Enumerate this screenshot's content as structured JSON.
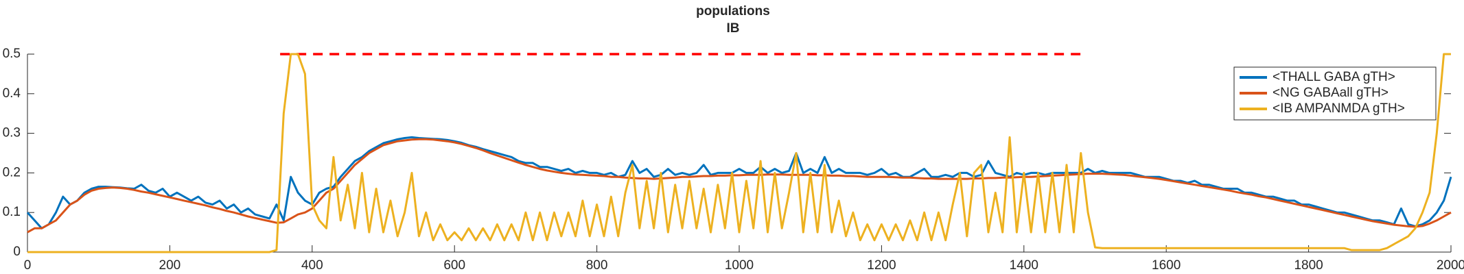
{
  "chart_data": {
    "type": "line",
    "title": "populations",
    "subtitle": "IB",
    "xlim": [
      0,
      2000
    ],
    "xticks": [
      0,
      200,
      400,
      600,
      800,
      1000,
      1200,
      1400,
      1600,
      1800,
      2000
    ],
    "ylim": [
      0,
      0.5
    ],
    "yticks": [
      0,
      0.1,
      0.2,
      0.3,
      0.4,
      0.5
    ],
    "legend": "upper right",
    "reference_line": {
      "value": 0.5,
      "xlim": [
        355,
        1485
      ],
      "color": "#ff0000"
    },
    "x": [
      0,
      10,
      20,
      30,
      40,
      50,
      60,
      70,
      80,
      90,
      100,
      110,
      120,
      130,
      140,
      150,
      160,
      170,
      180,
      190,
      200,
      210,
      220,
      230,
      240,
      250,
      260,
      270,
      280,
      290,
      300,
      310,
      320,
      330,
      340,
      350,
      360,
      370,
      380,
      390,
      400,
      410,
      420,
      430,
      440,
      450,
      460,
      470,
      480,
      490,
      500,
      510,
      520,
      530,
      540,
      550,
      560,
      570,
      580,
      590,
      600,
      610,
      620,
      630,
      640,
      650,
      660,
      670,
      680,
      690,
      700,
      710,
      720,
      730,
      740,
      750,
      760,
      770,
      780,
      790,
      800,
      810,
      820,
      830,
      840,
      850,
      860,
      870,
      880,
      890,
      900,
      910,
      920,
      930,
      940,
      950,
      960,
      970,
      980,
      990,
      1000,
      1010,
      1020,
      1030,
      1040,
      1050,
      1060,
      1070,
      1080,
      1090,
      1100,
      1110,
      1120,
      1130,
      1140,
      1150,
      1160,
      1170,
      1180,
      1190,
      1200,
      1210,
      1220,
      1230,
      1240,
      1250,
      1260,
      1270,
      1280,
      1290,
      1300,
      1310,
      1320,
      1330,
      1340,
      1350,
      1360,
      1370,
      1380,
      1390,
      1400,
      1410,
      1420,
      1430,
      1440,
      1450,
      1460,
      1470,
      1480,
      1490,
      1500,
      1510,
      1520,
      1530,
      1540,
      1550,
      1560,
      1570,
      1580,
      1590,
      1600,
      1610,
      1620,
      1630,
      1640,
      1650,
      1660,
      1670,
      1680,
      1690,
      1700,
      1710,
      1720,
      1730,
      1740,
      1750,
      1760,
      1770,
      1780,
      1790,
      1800,
      1810,
      1820,
      1830,
      1840,
      1850,
      1860,
      1870,
      1880,
      1890,
      1900,
      1910,
      1920,
      1930,
      1940,
      1950,
      1960,
      1970,
      1980,
      1990,
      2000
    ],
    "series": [
      {
        "name": "<THALL GABA gTH>",
        "color": "#0072bd",
        "values": [
          0.1,
          0.08,
          0.06,
          0.07,
          0.1,
          0.14,
          0.12,
          0.13,
          0.15,
          0.16,
          0.165,
          0.165,
          0.164,
          0.163,
          0.161,
          0.16,
          0.17,
          0.155,
          0.15,
          0.16,
          0.14,
          0.15,
          0.14,
          0.13,
          0.14,
          0.125,
          0.12,
          0.13,
          0.11,
          0.12,
          0.1,
          0.11,
          0.095,
          0.09,
          0.085,
          0.12,
          0.08,
          0.19,
          0.15,
          0.13,
          0.12,
          0.15,
          0.16,
          0.165,
          0.19,
          0.21,
          0.23,
          0.24,
          0.255,
          0.265,
          0.275,
          0.28,
          0.285,
          0.288,
          0.29,
          0.288,
          0.287,
          0.286,
          0.285,
          0.283,
          0.28,
          0.276,
          0.27,
          0.266,
          0.26,
          0.255,
          0.25,
          0.245,
          0.24,
          0.23,
          0.225,
          0.225,
          0.215,
          0.215,
          0.21,
          0.205,
          0.21,
          0.2,
          0.205,
          0.2,
          0.2,
          0.195,
          0.2,
          0.19,
          0.195,
          0.23,
          0.2,
          0.21,
          0.19,
          0.195,
          0.21,
          0.195,
          0.2,
          0.195,
          0.2,
          0.22,
          0.195,
          0.2,
          0.2,
          0.2,
          0.21,
          0.2,
          0.2,
          0.215,
          0.2,
          0.21,
          0.2,
          0.205,
          0.25,
          0.2,
          0.21,
          0.2,
          0.24,
          0.2,
          0.21,
          0.2,
          0.2,
          0.2,
          0.195,
          0.2,
          0.21,
          0.195,
          0.2,
          0.19,
          0.19,
          0.2,
          0.21,
          0.19,
          0.19,
          0.195,
          0.19,
          0.2,
          0.2,
          0.19,
          0.195,
          0.23,
          0.2,
          0.195,
          0.19,
          0.2,
          0.195,
          0.2,
          0.2,
          0.195,
          0.2,
          0.2,
          0.2,
          0.2,
          0.2,
          0.21,
          0.2,
          0.205,
          0.2,
          0.2,
          0.2,
          0.2,
          0.195,
          0.19,
          0.19,
          0.19,
          0.185,
          0.18,
          0.18,
          0.175,
          0.18,
          0.17,
          0.17,
          0.165,
          0.16,
          0.16,
          0.16,
          0.15,
          0.15,
          0.145,
          0.14,
          0.14,
          0.135,
          0.13,
          0.13,
          0.12,
          0.12,
          0.115,
          0.11,
          0.105,
          0.1,
          0.1,
          0.095,
          0.09,
          0.085,
          0.08,
          0.08,
          0.075,
          0.07,
          0.11,
          0.07,
          0.065,
          0.07,
          0.08,
          0.1,
          0.13,
          0.19
        ]
      },
      {
        "name": "<NG GABAall gTH>",
        "color": "#d95319",
        "values": [
          0.05,
          0.06,
          0.06,
          0.07,
          0.08,
          0.1,
          0.12,
          0.13,
          0.145,
          0.155,
          0.16,
          0.162,
          0.163,
          0.162,
          0.16,
          0.157,
          0.153,
          0.15,
          0.146,
          0.142,
          0.138,
          0.134,
          0.13,
          0.126,
          0.122,
          0.118,
          0.113,
          0.109,
          0.104,
          0.1,
          0.095,
          0.09,
          0.086,
          0.082,
          0.078,
          0.074,
          0.075,
          0.085,
          0.095,
          0.1,
          0.11,
          0.13,
          0.15,
          0.16,
          0.18,
          0.2,
          0.22,
          0.235,
          0.25,
          0.26,
          0.27,
          0.275,
          0.28,
          0.282,
          0.284,
          0.285,
          0.285,
          0.284,
          0.282,
          0.28,
          0.277,
          0.273,
          0.268,
          0.263,
          0.257,
          0.25,
          0.244,
          0.238,
          0.232,
          0.226,
          0.22,
          0.215,
          0.21,
          0.206,
          0.203,
          0.2,
          0.198,
          0.196,
          0.195,
          0.194,
          0.193,
          0.192,
          0.19,
          0.19,
          0.188,
          0.187,
          0.186,
          0.186,
          0.185,
          0.186,
          0.187,
          0.188,
          0.19,
          0.19,
          0.191,
          0.192,
          0.192,
          0.193,
          0.193,
          0.194,
          0.194,
          0.195,
          0.195,
          0.195,
          0.196,
          0.196,
          0.196,
          0.195,
          0.195,
          0.195,
          0.195,
          0.194,
          0.194,
          0.193,
          0.193,
          0.192,
          0.192,
          0.191,
          0.19,
          0.19,
          0.19,
          0.19,
          0.189,
          0.188,
          0.188,
          0.187,
          0.186,
          0.186,
          0.185,
          0.185,
          0.185,
          0.185,
          0.185,
          0.186,
          0.186,
          0.187,
          0.187,
          0.188,
          0.188,
          0.189,
          0.19,
          0.19,
          0.191,
          0.192,
          0.193,
          0.194,
          0.195,
          0.196,
          0.197,
          0.198,
          0.198,
          0.198,
          0.197,
          0.196,
          0.195,
          0.193,
          0.191,
          0.189,
          0.187,
          0.185,
          0.182,
          0.179,
          0.176,
          0.173,
          0.17,
          0.167,
          0.164,
          0.161,
          0.158,
          0.155,
          0.151,
          0.148,
          0.145,
          0.141,
          0.138,
          0.134,
          0.13,
          0.126,
          0.122,
          0.118,
          0.114,
          0.11,
          0.106,
          0.102,
          0.098,
          0.094,
          0.09,
          0.086,
          0.082,
          0.078,
          0.075,
          0.072,
          0.069,
          0.067,
          0.065,
          0.064,
          0.066,
          0.072,
          0.08,
          0.09,
          0.1
        ]
      },
      {
        "name": "<IB AMPANMDA gTH>",
        "color": "#edb120",
        "values": [
          0,
          0,
          0,
          0,
          0,
          0,
          0,
          0,
          0,
          0,
          0,
          0,
          0,
          0,
          0,
          0,
          0,
          0,
          0,
          0,
          0,
          0,
          0,
          0,
          0,
          0,
          0,
          0,
          0,
          0,
          0,
          0,
          0,
          0,
          0,
          0.005,
          0.35,
          0.5,
          0.5,
          0.45,
          0.12,
          0.08,
          0.06,
          0.24,
          0.08,
          0.17,
          0.06,
          0.2,
          0.05,
          0.16,
          0.05,
          0.13,
          0.04,
          0.1,
          0.2,
          0.04,
          0.1,
          0.03,
          0.07,
          0.03,
          0.05,
          0.03,
          0.06,
          0.03,
          0.06,
          0.03,
          0.07,
          0.03,
          0.07,
          0.03,
          0.1,
          0.03,
          0.1,
          0.03,
          0.1,
          0.04,
          0.1,
          0.04,
          0.13,
          0.04,
          0.12,
          0.04,
          0.14,
          0.04,
          0.15,
          0.22,
          0.06,
          0.18,
          0.06,
          0.2,
          0.05,
          0.17,
          0.06,
          0.18,
          0.06,
          0.16,
          0.05,
          0.17,
          0.06,
          0.2,
          0.05,
          0.18,
          0.06,
          0.23,
          0.05,
          0.2,
          0.06,
          0.15,
          0.25,
          0.05,
          0.2,
          0.05,
          0.22,
          0.05,
          0.13,
          0.04,
          0.1,
          0.03,
          0.07,
          0.03,
          0.07,
          0.03,
          0.07,
          0.03,
          0.08,
          0.03,
          0.1,
          0.03,
          0.1,
          0.03,
          0.12,
          0.2,
          0.04,
          0.2,
          0.22,
          0.05,
          0.15,
          0.05,
          0.29,
          0.05,
          0.2,
          0.05,
          0.2,
          0.05,
          0.2,
          0.05,
          0.22,
          0.05,
          0.25,
          0.1,
          0.012,
          0.01,
          0.01,
          0.01,
          0.01,
          0.01,
          0.01,
          0.01,
          0.01,
          0.01,
          0.01,
          0.01,
          0.01,
          0.01,
          0.01,
          0.01,
          0.01,
          0.01,
          0.01,
          0.01,
          0.01,
          0.01,
          0.01,
          0.01,
          0.01,
          0.01,
          0.01,
          0.01,
          0.01,
          0.01,
          0.01,
          0.01,
          0.01,
          0.01,
          0.01,
          0.01,
          0.005,
          0.005,
          0.005,
          0.005,
          0.005,
          0.01,
          0.02,
          0.03,
          0.04,
          0.06,
          0.1,
          0.15,
          0.3,
          0.5,
          0.5
        ]
      }
    ]
  }
}
